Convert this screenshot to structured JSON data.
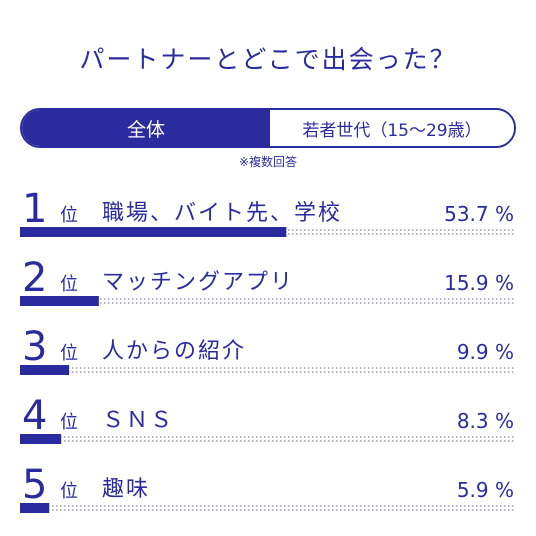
{
  "title": "パートナーとどこで出会った？",
  "tabs": [
    {
      "label": "全体",
      "active": true
    },
    {
      "label": "若者世代（15〜29歳）",
      "active": false
    }
  ],
  "note": "※複数回答",
  "rank_suffix": "位",
  "colors": {
    "accent": "#2b2ba0",
    "dots": "#9a9ab0"
  },
  "chart_data": {
    "type": "bar",
    "categories": [
      "職場、バイト先、学校",
      "マッチングアプリ",
      "人からの紹介",
      "ＳＮＳ",
      "趣味"
    ],
    "ranks": [
      "1",
      "2",
      "3",
      "4",
      "5"
    ],
    "values": [
      53.7,
      15.9,
      9.9,
      8.3,
      5.9
    ],
    "value_labels": [
      "53.7 %",
      "15.9 %",
      "9.9 %",
      "8.3 %",
      "5.9 %"
    ],
    "xlim": [
      0,
      100
    ]
  }
}
